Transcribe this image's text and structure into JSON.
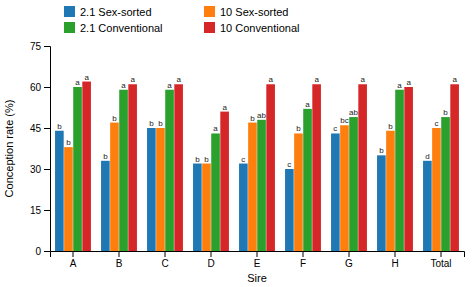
{
  "chart_data": {
    "type": "bar",
    "categories": [
      "A",
      "B",
      "C",
      "D",
      "E",
      "F",
      "G",
      "H",
      "Total"
    ],
    "series": [
      {
        "name": "2.1 Sex-sorted",
        "values": [
          44,
          33,
          45,
          32,
          32,
          30,
          43,
          35,
          33
        ],
        "annotations": [
          "b",
          "b",
          "b",
          "b",
          "c",
          "c",
          "c",
          "b",
          "d"
        ]
      },
      {
        "name": "10 Sex-sorted",
        "values": [
          38,
          47,
          45,
          32,
          47,
          43,
          46,
          44,
          45
        ],
        "annotations": [
          "b",
          "b",
          "b",
          "b",
          "b",
          "b",
          "bc",
          "b",
          "c"
        ]
      },
      {
        "name": "2.1 Conventional",
        "values": [
          60,
          59,
          59,
          43,
          48,
          52,
          49,
          59,
          49
        ],
        "annotations": [
          "a",
          "a",
          "a",
          "a",
          "ab",
          "a",
          "ab",
          "a",
          "b"
        ]
      },
      {
        "name": "10 Conventional",
        "values": [
          62,
          61,
          61,
          51,
          61,
          61,
          61,
          60,
          61
        ],
        "annotations": [
          "a",
          "a",
          "a",
          "a",
          "a",
          "a",
          "a",
          "a",
          "a"
        ]
      }
    ],
    "xlabel": "Sire",
    "ylabel": "Conception rate (%)",
    "ylim": [
      0,
      75
    ],
    "yticks": [
      0,
      15,
      30,
      45,
      60,
      75
    ],
    "legend": "top"
  }
}
